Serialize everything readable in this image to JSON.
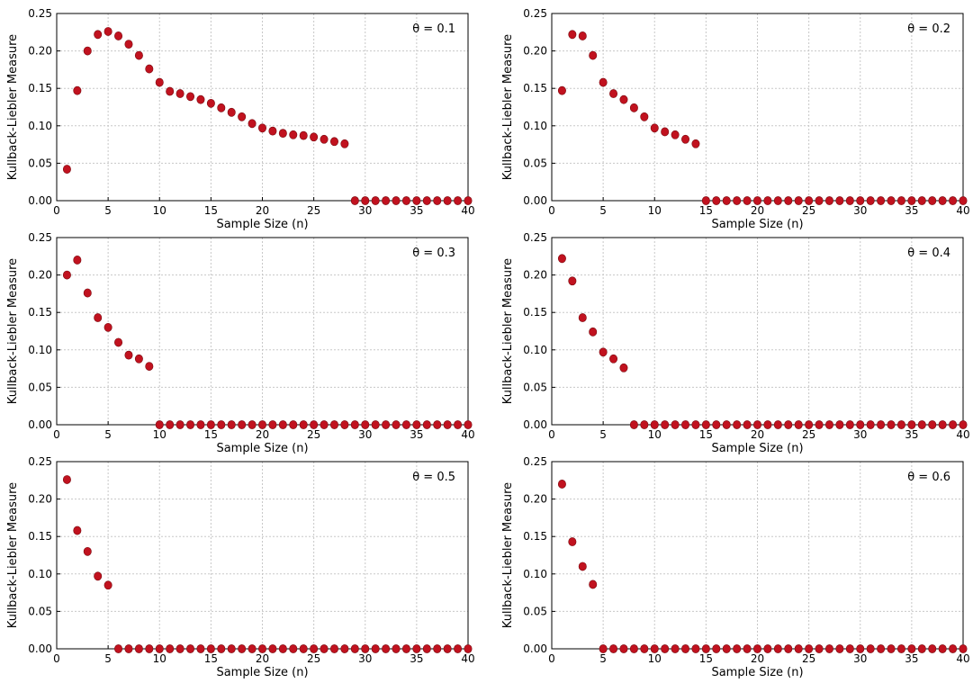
{
  "colors": {
    "marker": "#c1121f",
    "marker_edge": "#7a0a10",
    "grid": "#c8c8c8"
  },
  "chart_data": [
    {
      "type": "scatter",
      "annotation": "θ = 0.1",
      "xlabel": "Sample Size (n)",
      "ylabel": "Kullback-Liebler Measure",
      "xlim": [
        0,
        40
      ],
      "ylim": [
        0,
        0.25
      ],
      "xticks": [
        "0",
        "5",
        "10",
        "15",
        "20",
        "25",
        "30",
        "35",
        "40"
      ],
      "yticks": [
        "0.00",
        "0.05",
        "0.10",
        "0.15",
        "0.20",
        "0.25"
      ],
      "grid": true,
      "x": [
        1,
        2,
        3,
        4,
        5,
        6,
        7,
        8,
        9,
        10,
        11,
        12,
        13,
        14,
        15,
        16,
        17,
        18,
        19,
        20,
        21,
        22,
        23,
        24,
        25,
        26,
        27,
        28,
        29,
        30,
        31,
        32,
        33,
        34,
        35,
        36,
        37,
        38,
        39,
        40
      ],
      "y": [
        0.042,
        0.147,
        0.2,
        0.222,
        0.226,
        0.22,
        0.209,
        0.194,
        0.176,
        0.158,
        0.146,
        0.143,
        0.139,
        0.135,
        0.13,
        0.124,
        0.118,
        0.112,
        0.103,
        0.097,
        0.093,
        0.09,
        0.088,
        0.087,
        0.085,
        0.082,
        0.079,
        0.076,
        0,
        0,
        0,
        0,
        0,
        0,
        0,
        0,
        0,
        0,
        0,
        0
      ]
    },
    {
      "type": "scatter",
      "annotation": "θ = 0.2",
      "xlabel": "Sample Size (n)",
      "ylabel": "Kullback-Liebler Measure",
      "xlim": [
        0,
        40
      ],
      "ylim": [
        0,
        0.25
      ],
      "xticks": [
        "0",
        "5",
        "10",
        "15",
        "20",
        "25",
        "30",
        "35",
        "40"
      ],
      "yticks": [
        "0.00",
        "0.05",
        "0.10",
        "0.15",
        "0.20",
        "0.25"
      ],
      "grid": true,
      "x": [
        1,
        2,
        3,
        4,
        5,
        6,
        7,
        8,
        9,
        10,
        11,
        12,
        13,
        14,
        15,
        16,
        17,
        18,
        19,
        20,
        21,
        22,
        23,
        24,
        25,
        26,
        27,
        28,
        29,
        30,
        31,
        32,
        33,
        34,
        35,
        36,
        37,
        38,
        39,
        40
      ],
      "y": [
        0.147,
        0.222,
        0.22,
        0.194,
        0.158,
        0.143,
        0.135,
        0.124,
        0.112,
        0.097,
        0.092,
        0.088,
        0.082,
        0.076,
        0,
        0,
        0,
        0,
        0,
        0,
        0,
        0,
        0,
        0,
        0,
        0,
        0,
        0,
        0,
        0,
        0,
        0,
        0,
        0,
        0,
        0,
        0,
        0,
        0,
        0
      ]
    },
    {
      "type": "scatter",
      "annotation": "θ = 0.3",
      "xlabel": "Sample Size (n)",
      "ylabel": "Kullback-Liebler Measure",
      "xlim": [
        0,
        40
      ],
      "ylim": [
        0,
        0.25
      ],
      "xticks": [
        "0",
        "5",
        "10",
        "15",
        "20",
        "25",
        "30",
        "35",
        "40"
      ],
      "yticks": [
        "0.00",
        "0.05",
        "0.10",
        "0.15",
        "0.20",
        "0.25"
      ],
      "grid": true,
      "x": [
        1,
        2,
        3,
        4,
        5,
        6,
        7,
        8,
        9,
        10,
        11,
        12,
        13,
        14,
        15,
        16,
        17,
        18,
        19,
        20,
        21,
        22,
        23,
        24,
        25,
        26,
        27,
        28,
        29,
        30,
        31,
        32,
        33,
        34,
        35,
        36,
        37,
        38,
        39,
        40
      ],
      "y": [
        0.2,
        0.22,
        0.176,
        0.143,
        0.13,
        0.11,
        0.093,
        0.088,
        0.078,
        0,
        0,
        0,
        0,
        0,
        0,
        0,
        0,
        0,
        0,
        0,
        0,
        0,
        0,
        0,
        0,
        0,
        0,
        0,
        0,
        0,
        0,
        0,
        0,
        0,
        0,
        0,
        0,
        0,
        0,
        0
      ]
    },
    {
      "type": "scatter",
      "annotation": "θ = 0.4",
      "xlabel": "Sample Size (n)",
      "ylabel": "Kullback-Liebler Measure",
      "xlim": [
        0,
        40
      ],
      "ylim": [
        0,
        0.25
      ],
      "xticks": [
        "0",
        "5",
        "10",
        "15",
        "20",
        "25",
        "30",
        "35",
        "40"
      ],
      "yticks": [
        "0.00",
        "0.05",
        "0.10",
        "0.15",
        "0.20",
        "0.25"
      ],
      "grid": true,
      "x": [
        1,
        2,
        3,
        4,
        5,
        6,
        7,
        8,
        9,
        10,
        11,
        12,
        13,
        14,
        15,
        16,
        17,
        18,
        19,
        20,
        21,
        22,
        23,
        24,
        25,
        26,
        27,
        28,
        29,
        30,
        31,
        32,
        33,
        34,
        35,
        36,
        37,
        38,
        39,
        40
      ],
      "y": [
        0.222,
        0.192,
        0.143,
        0.124,
        0.097,
        0.088,
        0.076,
        0,
        0,
        0,
        0,
        0,
        0,
        0,
        0,
        0,
        0,
        0,
        0,
        0,
        0,
        0,
        0,
        0,
        0,
        0,
        0,
        0,
        0,
        0,
        0,
        0,
        0,
        0,
        0,
        0,
        0,
        0,
        0,
        0
      ]
    },
    {
      "type": "scatter",
      "annotation": "θ = 0.5",
      "xlabel": "Sample Size (n)",
      "ylabel": "Kullback-Liebler Measure",
      "xlim": [
        0,
        40
      ],
      "ylim": [
        0,
        0.25
      ],
      "xticks": [
        "0",
        "5",
        "10",
        "15",
        "20",
        "25",
        "30",
        "35",
        "40"
      ],
      "yticks": [
        "0.00",
        "0.05",
        "0.10",
        "0.15",
        "0.20",
        "0.25"
      ],
      "grid": true,
      "x": [
        1,
        2,
        3,
        4,
        5,
        6,
        7,
        8,
        9,
        10,
        11,
        12,
        13,
        14,
        15,
        16,
        17,
        18,
        19,
        20,
        21,
        22,
        23,
        24,
        25,
        26,
        27,
        28,
        29,
        30,
        31,
        32,
        33,
        34,
        35,
        36,
        37,
        38,
        39,
        40
      ],
      "y": [
        0.226,
        0.158,
        0.13,
        0.097,
        0.085,
        0,
        0,
        0,
        0,
        0,
        0,
        0,
        0,
        0,
        0,
        0,
        0,
        0,
        0,
        0,
        0,
        0,
        0,
        0,
        0,
        0,
        0,
        0,
        0,
        0,
        0,
        0,
        0,
        0,
        0,
        0,
        0,
        0,
        0,
        0
      ]
    },
    {
      "type": "scatter",
      "annotation": "θ = 0.6",
      "xlabel": "Sample Size (n)",
      "ylabel": "Kullback-Liebler Measure",
      "xlim": [
        0,
        40
      ],
      "ylim": [
        0,
        0.25
      ],
      "xticks": [
        "0",
        "5",
        "10",
        "15",
        "20",
        "25",
        "30",
        "35",
        "40"
      ],
      "yticks": [
        "0.00",
        "0.05",
        "0.10",
        "0.15",
        "0.20",
        "0.25"
      ],
      "grid": true,
      "x": [
        1,
        2,
        3,
        4,
        5,
        6,
        7,
        8,
        9,
        10,
        11,
        12,
        13,
        14,
        15,
        16,
        17,
        18,
        19,
        20,
        21,
        22,
        23,
        24,
        25,
        26,
        27,
        28,
        29,
        30,
        31,
        32,
        33,
        34,
        35,
        36,
        37,
        38,
        39,
        40
      ],
      "y": [
        0.22,
        0.143,
        0.11,
        0.086,
        0,
        0,
        0,
        0,
        0,
        0,
        0,
        0,
        0,
        0,
        0,
        0,
        0,
        0,
        0,
        0,
        0,
        0,
        0,
        0,
        0,
        0,
        0,
        0,
        0,
        0,
        0,
        0,
        0,
        0,
        0,
        0,
        0,
        0,
        0,
        0
      ]
    }
  ]
}
